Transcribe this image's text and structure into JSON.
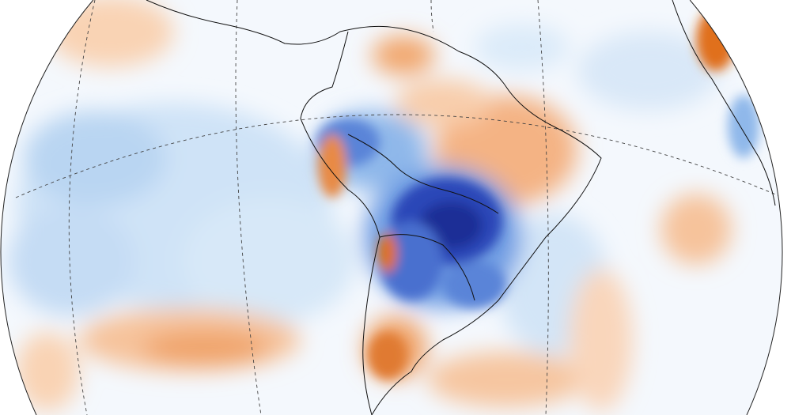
{
  "map": {
    "projection": "orthographic-globe",
    "region": "South America",
    "graticule": "dashed",
    "colors": {
      "ocean_neutral": "#ffffff",
      "light_blue": "#cfe3f7",
      "mid_blue": "#8fb8ea",
      "deep_blue": "#2a46b8",
      "navy": "#1d2f96",
      "light_orange": "#f9d3b4",
      "orange": "#f2a26a",
      "deep_orange": "#e0701f",
      "border": "#111111"
    }
  }
}
